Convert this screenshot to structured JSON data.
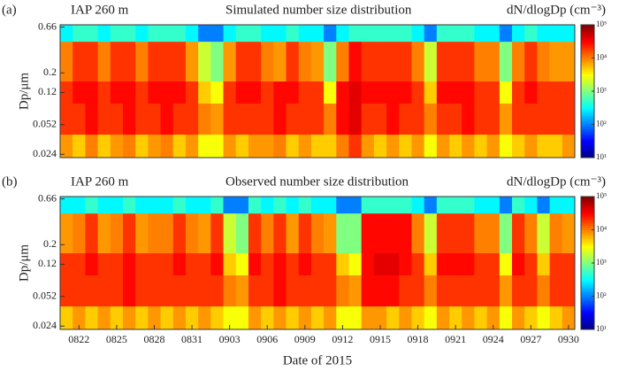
{
  "chart_data": [
    {
      "type": "heatmap",
      "panel_label": "(a)",
      "site": "IAP 260 m",
      "title": "Simulated number size distribution",
      "colorbar_label": "dN/dlogDp (cm⁻³)",
      "ylabel": "Dp/μm",
      "ylim": [
        0.022,
        0.7
      ],
      "ylog": true,
      "yticks": [
        0.024,
        0.052,
        0.12,
        0.2,
        0.66
      ],
      "y_edges": [
        0.7,
        0.45,
        0.16,
        0.09,
        0.04,
        0.022
      ],
      "zlim": [
        10,
        100000
      ],
      "zlog": true,
      "colormap": "jet",
      "zticks": [
        {
          "value": 10,
          "label": "10¹"
        },
        {
          "value": 100,
          "label": "10²"
        },
        {
          "value": 1000,
          "label": "10³"
        },
        {
          "value": 10000,
          "label": "10⁴"
        },
        {
          "value": 100000,
          "label": "10⁵"
        }
      ],
      "z": [
        [
          300,
          500,
          500,
          300,
          500,
          500,
          300,
          500,
          500,
          500,
          300,
          100,
          100,
          300,
          500,
          500,
          300,
          300,
          500,
          300,
          300,
          100,
          300,
          500,
          500,
          500,
          500,
          500,
          300,
          100,
          500,
          500,
          500,
          300,
          300,
          100,
          300,
          500,
          300,
          300,
          300
        ],
        [
          10000,
          20000,
          20000,
          10000,
          20000,
          20000,
          10000,
          20000,
          20000,
          20000,
          8000,
          2000,
          1000,
          8000,
          20000,
          20000,
          10000,
          8000,
          20000,
          10000,
          8000,
          1000,
          10000,
          30000,
          20000,
          20000,
          20000,
          20000,
          10000,
          2000,
          20000,
          20000,
          20000,
          10000,
          10000,
          1000,
          10000,
          20000,
          10000,
          8000,
          8000
        ],
        [
          20000,
          30000,
          30000,
          20000,
          30000,
          30000,
          20000,
          30000,
          30000,
          30000,
          20000,
          5000,
          3000,
          20000,
          30000,
          30000,
          20000,
          30000,
          30000,
          20000,
          20000,
          3000,
          30000,
          40000,
          30000,
          30000,
          30000,
          30000,
          20000,
          5000,
          30000,
          30000,
          30000,
          20000,
          20000,
          3000,
          20000,
          30000,
          20000,
          20000,
          20000
        ],
        [
          20000,
          20000,
          30000,
          20000,
          20000,
          30000,
          20000,
          20000,
          30000,
          20000,
          20000,
          10000,
          8000,
          20000,
          20000,
          20000,
          20000,
          30000,
          20000,
          20000,
          20000,
          10000,
          30000,
          40000,
          20000,
          20000,
          30000,
          20000,
          20000,
          10000,
          20000,
          20000,
          30000,
          20000,
          20000,
          8000,
          20000,
          20000,
          20000,
          20000,
          20000
        ],
        [
          8000,
          5000,
          10000,
          5000,
          8000,
          10000,
          5000,
          8000,
          10000,
          5000,
          8000,
          3000,
          3000,
          8000,
          5000,
          8000,
          8000,
          10000,
          5000,
          8000,
          5000,
          5000,
          10000,
          20000,
          8000,
          5000,
          8000,
          5000,
          8000,
          3000,
          8000,
          5000,
          8000,
          5000,
          8000,
          3000,
          5000,
          8000,
          5000,
          5000,
          8000
        ]
      ]
    },
    {
      "type": "heatmap",
      "panel_label": "(b)",
      "site": "IAP 260 m",
      "title": "Observed number size distribution",
      "colorbar_label": "dN/dlogDp (cm⁻³)",
      "ylabel": "Dp/μm",
      "xlabel": "Date of 2015",
      "categories": [
        null,
        "0822",
        null,
        null,
        "0825",
        null,
        null,
        "0828",
        null,
        null,
        "0831",
        null,
        null,
        "0903",
        null,
        null,
        "0906",
        null,
        null,
        "0909",
        null,
        null,
        "0912",
        null,
        null,
        "0915",
        null,
        null,
        "0918",
        null,
        null,
        "0921",
        null,
        null,
        "0924",
        null,
        null,
        "0927",
        null,
        null,
        "0930"
      ],
      "ylim": [
        0.022,
        0.7
      ],
      "ylog": true,
      "yticks": [
        0.024,
        0.052,
        0.12,
        0.2,
        0.66
      ],
      "y_edges": [
        0.7,
        0.45,
        0.16,
        0.09,
        0.04,
        0.022
      ],
      "zlim": [
        10,
        100000
      ],
      "zlog": true,
      "colormap": "jet",
      "zticks": [
        {
          "value": 10,
          "label": "10¹"
        },
        {
          "value": 100,
          "label": "10²"
        },
        {
          "value": 1000,
          "label": "10³"
        },
        {
          "value": 10000,
          "label": "10⁴"
        },
        {
          "value": 100000,
          "label": "10⁵"
        }
      ],
      "z": [
        [
          300,
          300,
          500,
          300,
          300,
          500,
          300,
          300,
          300,
          500,
          300,
          300,
          500,
          100,
          100,
          500,
          300,
          500,
          300,
          500,
          300,
          300,
          100,
          100,
          500,
          500,
          500,
          500,
          300,
          100,
          500,
          500,
          500,
          300,
          300,
          100,
          500,
          300,
          100,
          300,
          300
        ],
        [
          8000,
          10000,
          20000,
          8000,
          10000,
          20000,
          8000,
          10000,
          10000,
          20000,
          10000,
          8000,
          20000,
          2000,
          1000,
          20000,
          10000,
          20000,
          8000,
          20000,
          10000,
          8000,
          1000,
          1000,
          30000,
          30000,
          30000,
          30000,
          10000,
          2000,
          20000,
          20000,
          20000,
          10000,
          10000,
          1000,
          20000,
          10000,
          2000,
          10000,
          8000
        ],
        [
          20000,
          20000,
          30000,
          20000,
          20000,
          30000,
          20000,
          20000,
          20000,
          30000,
          20000,
          20000,
          30000,
          5000,
          3000,
          30000,
          20000,
          30000,
          20000,
          30000,
          20000,
          20000,
          5000,
          3000,
          30000,
          40000,
          40000,
          30000,
          20000,
          5000,
          30000,
          30000,
          30000,
          20000,
          20000,
          3000,
          30000,
          20000,
          5000,
          20000,
          20000
        ],
        [
          20000,
          20000,
          20000,
          20000,
          20000,
          30000,
          20000,
          20000,
          20000,
          20000,
          20000,
          20000,
          20000,
          10000,
          8000,
          20000,
          20000,
          30000,
          20000,
          20000,
          20000,
          20000,
          10000,
          8000,
          30000,
          30000,
          30000,
          20000,
          20000,
          10000,
          20000,
          20000,
          20000,
          20000,
          20000,
          8000,
          20000,
          20000,
          10000,
          20000,
          20000
        ],
        [
          5000,
          8000,
          5000,
          8000,
          5000,
          8000,
          5000,
          8000,
          5000,
          8000,
          5000,
          8000,
          5000,
          3000,
          3000,
          8000,
          5000,
          8000,
          5000,
          8000,
          5000,
          8000,
          3000,
          3000,
          8000,
          8000,
          5000,
          8000,
          5000,
          3000,
          8000,
          5000,
          8000,
          5000,
          8000,
          3000,
          8000,
          5000,
          3000,
          5000,
          8000
        ]
      ]
    }
  ]
}
